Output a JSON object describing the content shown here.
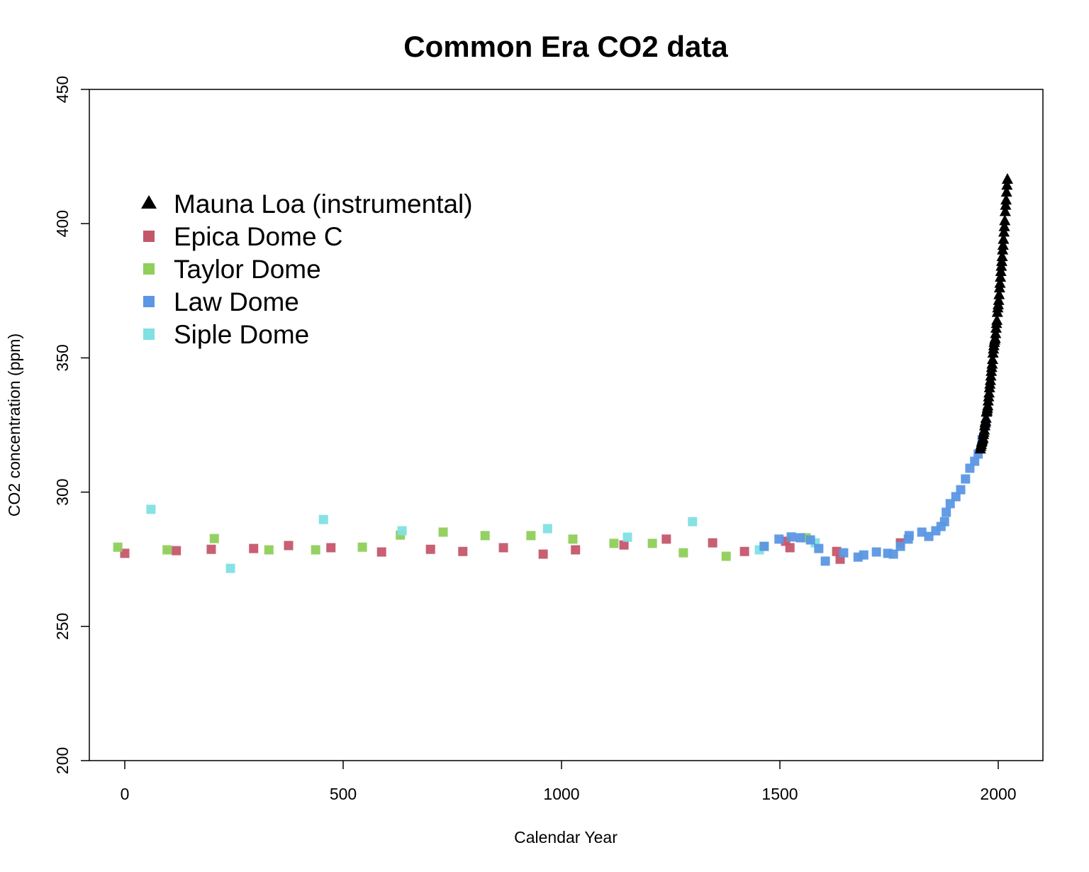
{
  "chart_data": {
    "type": "scatter",
    "title": "Common Era CO2 data",
    "xlabel": "Calendar Year",
    "ylabel": "CO2 concentration (ppm)",
    "xlim": [
      -160,
      2100
    ],
    "ylim": [
      200,
      450
    ],
    "xticks": [
      0,
      500,
      1000,
      1500,
      2000
    ],
    "yticks": [
      200,
      250,
      300,
      350,
      400,
      450
    ],
    "grid": false,
    "legend_position": "top-left",
    "series": [
      {
        "name": "Mauna Loa (instrumental)",
        "marker": "triangle",
        "color": "#000000",
        "x": [
          1959,
          1960,
          1961,
          1962,
          1963,
          1964,
          1965,
          1966,
          1967,
          1968,
          1969,
          1970,
          1971,
          1972,
          1973,
          1974,
          1975,
          1976,
          1977,
          1978,
          1979,
          1980,
          1981,
          1982,
          1983,
          1984,
          1985,
          1986,
          1987,
          1988,
          1989,
          1990,
          1991,
          1992,
          1993,
          1994,
          1995,
          1996,
          1997,
          1998,
          1999,
          2000,
          2001,
          2002,
          2003,
          2004,
          2005,
          2006,
          2007,
          2008,
          2009,
          2010,
          2011,
          2012,
          2013,
          2014,
          2015,
          2016,
          2017,
          2018,
          2019,
          2020,
          2021
        ],
        "y": [
          315.98,
          316.91,
          317.64,
          318.45,
          318.99,
          319.62,
          320.04,
          321.37,
          322.18,
          323.05,
          324.62,
          325.68,
          326.32,
          327.46,
          329.68,
          330.19,
          331.12,
          332.03,
          333.84,
          335.41,
          336.84,
          338.76,
          340.12,
          341.48,
          343.15,
          344.87,
          346.35,
          347.61,
          349.31,
          351.69,
          353.2,
          354.45,
          355.7,
          356.54,
          357.21,
          358.96,
          360.97,
          362.74,
          363.88,
          366.84,
          368.54,
          369.71,
          371.32,
          373.45,
          375.98,
          377.7,
          379.98,
          382.09,
          384.02,
          385.83,
          387.64,
          390.1,
          391.85,
          394.06,
          396.74,
          398.81,
          401.01,
          404.41,
          406.76,
          408.72,
          411.66,
          414.24,
          416.45
        ]
      },
      {
        "name": "Epica Dome C",
        "marker": "square",
        "color": "#c5566a",
        "x": [
          0,
          118,
          198,
          295,
          375,
          472,
          588,
          700,
          774,
          867,
          958,
          1032,
          1143,
          1240,
          1346,
          1419,
          1513,
          1523,
          1630,
          1638,
          1776
        ],
        "y": [
          277.2,
          278.2,
          278.7,
          279.0,
          280.1,
          279.3,
          277.7,
          278.7,
          277.9,
          279.3,
          276.9,
          278.5,
          280.3,
          282.5,
          281.1,
          277.9,
          281.7,
          279.3,
          277.9,
          275.0,
          281.1
        ]
      },
      {
        "name": "Taylor Dome",
        "marker": "square",
        "color": "#8fcf5a",
        "x": [
          -16,
          97,
          205,
          330,
          437,
          544,
          631,
          729,
          825,
          930,
          1026,
          1120,
          1208,
          1279,
          1377,
          1464,
          1560
        ],
        "y": [
          279.5,
          278.5,
          282.7,
          278.5,
          278.5,
          279.5,
          284.0,
          285.1,
          283.8,
          283.8,
          282.5,
          280.9,
          280.9,
          277.4,
          276.1,
          279.8,
          283.0
        ]
      },
      {
        "name": "Law Dome",
        "marker": "square",
        "color": "#5b97e3",
        "x": [
          1464,
          1498,
          1526,
          1547,
          1570,
          1589,
          1604,
          1646,
          1679,
          1692,
          1721,
          1747,
          1760,
          1776,
          1794,
          1796,
          1825,
          1841,
          1857,
          1869,
          1877,
          1881,
          1890,
          1903,
          1914,
          1925,
          1935,
          1946,
          1954,
          1963,
          1971,
          1976
        ],
        "y": [
          279.8,
          282.5,
          283.3,
          283.0,
          282.2,
          279.0,
          274.3,
          277.4,
          275.8,
          276.6,
          277.7,
          277.2,
          276.9,
          279.8,
          282.5,
          283.8,
          285.1,
          283.5,
          285.6,
          287.2,
          289.0,
          292.5,
          295.7,
          298.3,
          300.9,
          304.9,
          308.9,
          311.5,
          314.2,
          319.5,
          324.7,
          330.0
        ]
      },
      {
        "name": "Siple Dome",
        "marker": "square",
        "color": "#80e0e3",
        "x": [
          60,
          242,
          455,
          635,
          968,
          1151,
          1300,
          1453,
          1581
        ],
        "y": [
          293.6,
          271.6,
          289.8,
          285.6,
          286.4,
          283.2,
          289.0,
          278.5,
          281.1
        ]
      }
    ]
  }
}
